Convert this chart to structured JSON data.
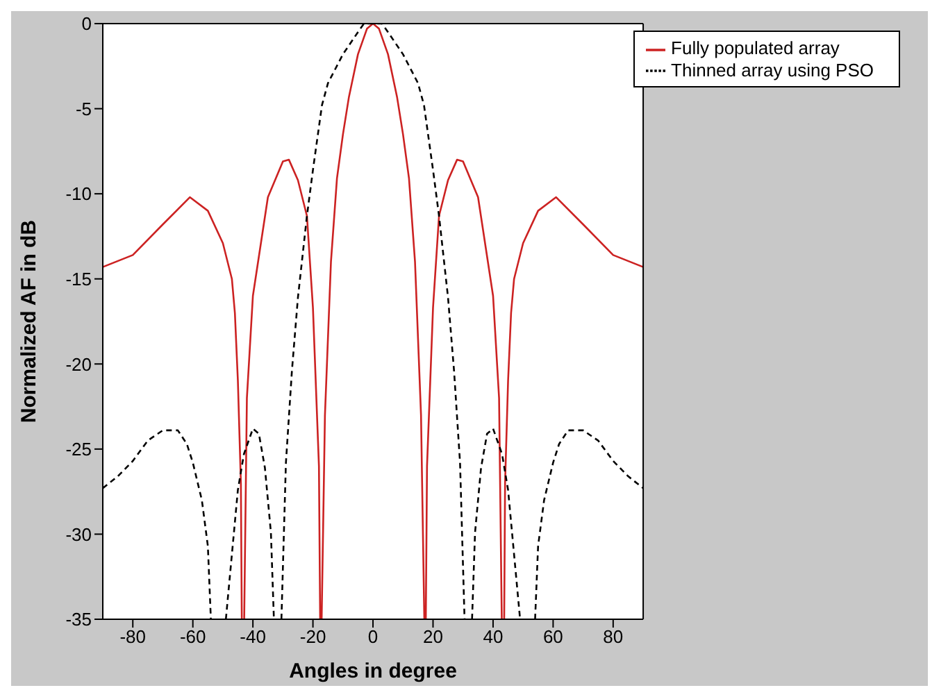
{
  "chart_data": {
    "type": "line",
    "xlabel": "Angles in degree",
    "ylabel": "Normalized AF in dB",
    "xlim": [
      -90,
      90
    ],
    "ylim": [
      -35,
      0
    ],
    "xticks": [
      -80,
      -60,
      -40,
      -20,
      0,
      20,
      40,
      60,
      80
    ],
    "yticks": [
      -35,
      -30,
      -25,
      -20,
      -15,
      -10,
      -5,
      0
    ],
    "legend": "top right",
    "grid": false,
    "series": [
      {
        "name": "Fully populated array",
        "color": "#cc2222",
        "line_style": "solid",
        "x": [
          -90,
          -80,
          -70,
          -61,
          -55,
          -50,
          -47,
          -46,
          -45,
          -44,
          -43.7,
          -43.6,
          -42.9,
          -42,
          -40,
          -35,
          -30,
          -28,
          -25,
          -22,
          -20,
          -18,
          -17.6,
          -17.4,
          -17.1,
          -16,
          -14,
          -12,
          -10,
          -8,
          -5,
          -2,
          0,
          2,
          5,
          8,
          10,
          12,
          14,
          16,
          17.1,
          17.4,
          17.6,
          18,
          20,
          22,
          25,
          28,
          30,
          35,
          40,
          42,
          42.9,
          43.6,
          43.7,
          44,
          45,
          46,
          47,
          50,
          55,
          61,
          70,
          80,
          90
        ],
        "values": [
          -14.3,
          -13.6,
          -11.8,
          -10.2,
          -11,
          -12.9,
          -15,
          -17,
          -21,
          -27,
          -35,
          null,
          -35,
          -22,
          -16,
          -10.2,
          -8.1,
          -8,
          -9.2,
          -11.3,
          -16.7,
          -26,
          -35,
          null,
          -35,
          -23,
          -14,
          -9.1,
          -6.5,
          -4.3,
          -1.8,
          -0.3,
          0,
          -0.3,
          -1.8,
          -4.3,
          -6.5,
          -9.1,
          -14,
          -23,
          -35,
          null,
          -35,
          -26,
          -16.7,
          -11.3,
          -9.2,
          -8,
          -8.1,
          -10.2,
          -16,
          -22,
          -35,
          null,
          -35,
          -27,
          -21,
          -17,
          -15,
          -12.9,
          -11,
          -10.2,
          -11.8,
          -13.6,
          -14.3
        ]
      },
      {
        "name": "Thinned array using PSO",
        "color": "#000000",
        "line_style": "dashed",
        "x": [
          -90,
          -85,
          -80,
          -75,
          -70,
          -65,
          -62,
          -60,
          -57,
          -55,
          -54,
          -51,
          -49,
          -47,
          -45,
          -43,
          -40,
          -38,
          -36,
          -34,
          -33,
          -32,
          -30.5,
          -29,
          -27,
          -25,
          -22,
          -20,
          -17,
          -15,
          -10,
          -5,
          -3,
          0,
          3,
          5,
          10,
          15,
          17,
          20,
          22,
          25,
          27,
          29,
          30.5,
          32,
          33,
          34,
          36,
          38,
          40,
          43,
          45,
          47,
          49,
          51,
          54,
          55,
          57,
          60,
          62,
          65,
          70,
          75,
          80,
          85,
          90
        ],
        "values": [
          -27.3,
          -26.6,
          -25.7,
          -24.5,
          -23.9,
          -23.9,
          -24.7,
          -25.8,
          -28,
          -30.7,
          -35,
          null,
          -35,
          -31.2,
          -27.4,
          -25.3,
          -23.8,
          -24.1,
          -26.1,
          -29.9,
          -35,
          null,
          -35,
          -25.8,
          -20.4,
          -16.1,
          -11.3,
          -8.6,
          -4.8,
          -3.5,
          -1.8,
          -0.5,
          0,
          0,
          0,
          -0.5,
          -1.8,
          -3.5,
          -4.8,
          -8.6,
          -11.3,
          -16.1,
          -20.4,
          -25.8,
          -35,
          null,
          -35,
          -29.9,
          -26.1,
          -24.1,
          -23.8,
          -25.3,
          -27.4,
          -31.2,
          -35,
          null,
          -35,
          -30.7,
          -28,
          -25.8,
          -24.7,
          -23.9,
          -23.9,
          -24.5,
          -25.7,
          -26.6,
          -27.3
        ]
      }
    ]
  }
}
